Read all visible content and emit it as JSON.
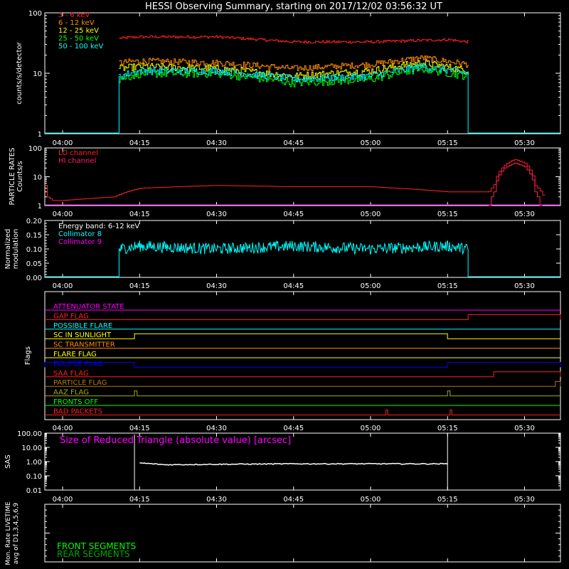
{
  "title": "HESSI Observing Summary, starting on 2017/12/02 03:56:32 UT",
  "time_ticks": [
    "04:00",
    "04:15",
    "04:30",
    "04:45",
    "05:00",
    "05:15",
    "05:30"
  ],
  "colors": {
    "background": "#000000",
    "axes": "#ffffff",
    "red": "#ff2020",
    "orange": "#ff8c00",
    "yellow": "#ffff00",
    "green": "#00ff00",
    "cyan": "#00ffff",
    "magenta": "#ff00ff",
    "blue": "#0000ff",
    "brown": "#b4781e",
    "olive": "#aaaa00",
    "white": "#ffffff",
    "darkgreen": "#00aa00"
  },
  "chart_data": [
    {
      "id": "count-rates",
      "type": "line",
      "ylabel": "counts/s/detector",
      "yscale": "log",
      "ylim": [
        1,
        100
      ],
      "y_ticks": [
        "1",
        "10",
        "100"
      ],
      "xlim": [
        "03:56:32",
        "05:37:00"
      ],
      "legend_placement": "top-left",
      "series": [
        {
          "name": "3 - 6 keV",
          "color": "#ff2020",
          "x": [
            "04:11",
            "04:15",
            "04:30",
            "04:45",
            "05:00",
            "05:15",
            "05:19"
          ],
          "values": [
            38,
            40,
            40,
            33,
            33,
            36,
            33
          ]
        },
        {
          "name": "6 - 12 keV",
          "color": "#ff8c00",
          "x": [
            "04:11",
            "04:15",
            "04:30",
            "04:45",
            "05:00",
            "05:10",
            "05:19"
          ],
          "values": [
            15,
            16,
            15,
            12,
            14,
            18,
            14
          ]
        },
        {
          "name": "12 - 25 keV",
          "color": "#ffff00",
          "x": [
            "04:11",
            "04:15",
            "04:30",
            "04:45",
            "05:00",
            "05:10",
            "05:19"
          ],
          "values": [
            12,
            13,
            12,
            9,
            11,
            15,
            11
          ]
        },
        {
          "name": "25 - 50 keV",
          "color": "#00ff00",
          "x": [
            "04:11",
            "04:15",
            "04:30",
            "04:45",
            "05:00",
            "05:10",
            "05:19"
          ],
          "values": [
            8,
            10,
            10,
            7,
            8,
            12,
            9
          ]
        },
        {
          "name": "50 - 100 keV",
          "color": "#00ffff",
          "x": [
            "04:11",
            "04:15",
            "04:30",
            "04:45",
            "05:00",
            "05:10",
            "05:19"
          ],
          "values": [
            9,
            11,
            11,
            8,
            9,
            13,
            10
          ]
        }
      ]
    },
    {
      "id": "particle-rates",
      "type": "line",
      "ylabel": "PARTICLE RATES Counts/s",
      "yscale": "log",
      "ylim": [
        1,
        100
      ],
      "y_ticks": [
        "1",
        "10",
        "100"
      ],
      "legend_placement": "top-left",
      "series": [
        {
          "name": "LO channel",
          "color": "#ff2020",
          "x": [
            "03:56:32",
            "03:57",
            "03:58",
            "04:00",
            "04:10",
            "04:15",
            "04:30",
            "04:45",
            "05:00",
            "05:15",
            "05:23",
            "05:24",
            "05:26",
            "05:28",
            "05:30",
            "05:32",
            "05:34"
          ],
          "values": [
            5,
            2,
            1.5,
            1.5,
            2,
            4,
            5,
            4.5,
            4.5,
            3,
            3,
            5,
            25,
            40,
            30,
            5,
            1.5
          ]
        },
        {
          "name": "HI channel",
          "color": "#ff2060",
          "x": [
            "05:23",
            "05:24",
            "05:26",
            "05:28",
            "05:30",
            "05:32",
            "05:33"
          ],
          "values": [
            1,
            3,
            20,
            30,
            22,
            3,
            1
          ]
        }
      ]
    },
    {
      "id": "modulation",
      "type": "line",
      "ylabel": "Normalized modulation",
      "ylim": [
        0,
        0.2
      ],
      "y_ticks": [
        "0.00",
        "0.05",
        "0.10",
        "0.15",
        "0.20"
      ],
      "annotation": "Energy band: 6-12 keV",
      "legend_placement": "top-left",
      "series": [
        {
          "name": "Collimator 8",
          "color": "#00ffff",
          "x": [
            "04:11",
            "04:15",
            "04:30",
            "04:45",
            "05:00",
            "05:15",
            "05:19"
          ],
          "values": [
            0.1,
            0.11,
            0.1,
            0.11,
            0.1,
            0.11,
            0.1
          ]
        },
        {
          "name": "Collimator 9",
          "color": "#ff00ff",
          "x": [],
          "values": []
        }
      ]
    },
    {
      "id": "flags",
      "type": "line",
      "ylabel": "Flags",
      "flags": [
        {
          "name": "ATTENUATOR STATE",
          "color": "#ff00ff",
          "steps": []
        },
        {
          "name": "GAP FLAG",
          "color": "#ff2020",
          "steps": [
            [
              "05:19",
              "05:37"
            ]
          ]
        },
        {
          "name": "POSSIBLE FLARE",
          "color": "#00ffff",
          "steps": []
        },
        {
          "name": "SC IN SUNLIGHT",
          "color": "#ffff00",
          "steps": [
            [
              "04:14",
              "05:15"
            ]
          ]
        },
        {
          "name": "SC TRANSMITTER",
          "color": "#ff8c00",
          "steps": []
        },
        {
          "name": "FLARE FLAG",
          "color": "#ffff00",
          "steps": []
        },
        {
          "name": "ECLIPSE FLAG",
          "color": "#0000ff",
          "steps": [
            [
              "03:56:32",
              "04:14"
            ],
            [
              "05:15",
              "05:37"
            ]
          ]
        },
        {
          "name": "SAA FLAG",
          "color": "#ff2020",
          "steps": [
            [
              "05:24",
              "05:37"
            ]
          ]
        },
        {
          "name": "PARTICLE FLAG",
          "color": "#b4781e",
          "steps": [
            [
              "05:36",
              "05:37"
            ]
          ]
        },
        {
          "name": "AAZ FLAG",
          "color": "#aaaa00",
          "steps": [
            [
              "04:14",
              "04:14:30"
            ],
            [
              "05:15",
              "05:15:30"
            ]
          ]
        },
        {
          "name": "FRONTS OFF",
          "color": "#00ff00",
          "steps": []
        },
        {
          "name": "BAD PACKETS",
          "color": "#ff2020",
          "steps": [
            [
              "05:03",
              "05:03:20"
            ],
            [
              "05:15:30",
              "05:15:50"
            ]
          ]
        }
      ]
    },
    {
      "id": "sas",
      "type": "line",
      "ylabel": "SAS",
      "yscale": "log",
      "ylim": [
        0.01,
        100
      ],
      "y_ticks": [
        "0.01",
        "0.10",
        "1.00",
        "10.00",
        "100.00"
      ],
      "annotation": "Size of Reduced Triangle (absolute value) [arcsec]",
      "series": [
        {
          "name": "",
          "color": "#ffffff",
          "x": [
            "04:14",
            "04:15",
            "04:20",
            "04:30",
            "04:45",
            "05:00",
            "05:15"
          ],
          "values": [
            100,
            0.8,
            0.6,
            0.65,
            0.7,
            0.7,
            0.7
          ]
        }
      ]
    },
    {
      "id": "livetime",
      "type": "line",
      "ylabel": "Mon. Rate LIVETIME avg of D1,3,4,5,6,9",
      "ylim": [
        0,
        1
      ],
      "legend_placement": "bottom-left",
      "series": [
        {
          "name": "FRONT SEGMENTS",
          "color": "#00ff00",
          "x": [],
          "values": []
        },
        {
          "name": "REAR SEGMENTS",
          "color": "#00aa00",
          "x": [],
          "values": []
        }
      ]
    }
  ]
}
